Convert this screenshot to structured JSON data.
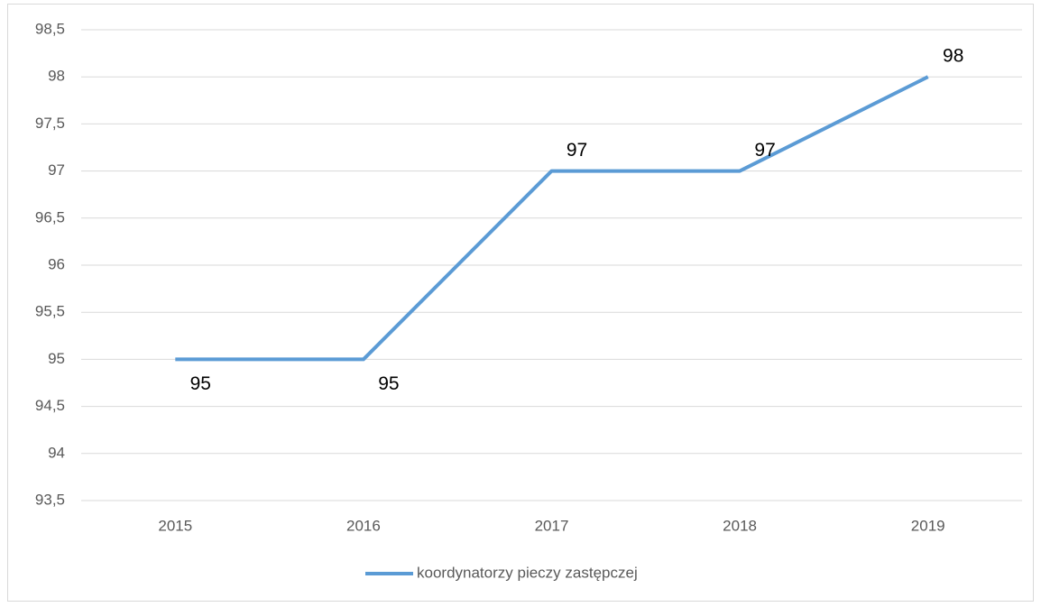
{
  "chart_data": {
    "type": "line",
    "categories": [
      "2015",
      "2016",
      "2017",
      "2018",
      "2019"
    ],
    "series": [
      {
        "name": "koordynatorzy pieczy zastępczej",
        "color": "#5b9bd5",
        "values": [
          95,
          95,
          97,
          97,
          98
        ]
      }
    ],
    "ylim": [
      93.5,
      98.5
    ],
    "yticks": [
      {
        "value": 93.5,
        "label": "93,5"
      },
      94,
      {
        "value": 94.5,
        "label": "94,5"
      },
      95,
      {
        "value": 95.5,
        "label": "95,5"
      },
      96,
      {
        "value": 96.5,
        "label": "96,5"
      },
      97,
      {
        "value": 97.5,
        "label": "97,5"
      },
      98,
      {
        "value": 98.5,
        "label": "98,5"
      }
    ],
    "grid": true,
    "legend": "bottom"
  }
}
